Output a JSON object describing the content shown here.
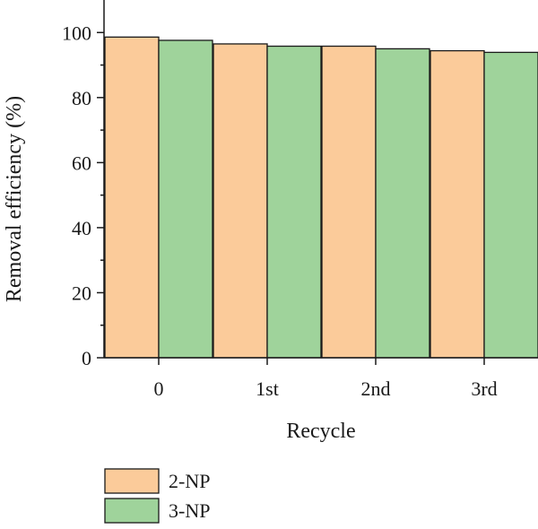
{
  "chart_data": {
    "type": "bar",
    "categories": [
      "0",
      "1st",
      "2nd",
      "3rd"
    ],
    "series": [
      {
        "name": "2-NP",
        "values": [
          98.6,
          96.5,
          95.8,
          94.4
        ],
        "color": "#fbcb9a"
      },
      {
        "name": "3-NP",
        "values": [
          97.6,
          95.8,
          95.0,
          93.9
        ],
        "color": "#9fd39b"
      }
    ],
    "xlabel": "Recycle",
    "ylabel": "Removal efficiency (%)",
    "ylim": [
      0,
      110
    ],
    "yticks": [
      "0",
      "20",
      "40",
      "60",
      "80",
      "100"
    ],
    "legend_position": "bottom-left",
    "grid": false
  }
}
